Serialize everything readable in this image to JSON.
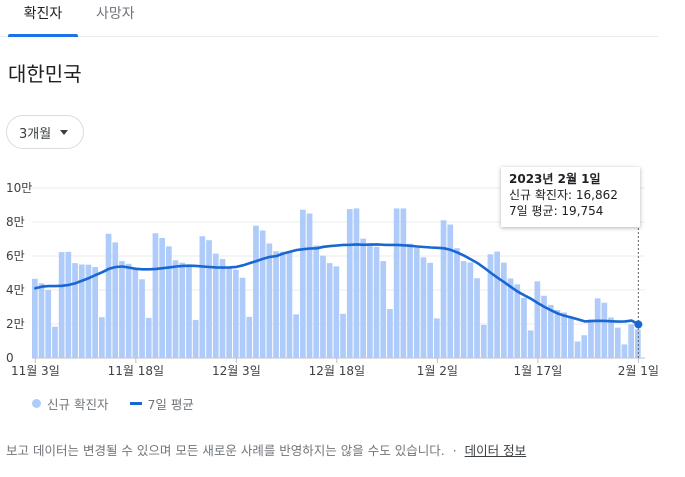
{
  "tabs": [
    {
      "label": "확진자",
      "active": true
    },
    {
      "label": "사망자",
      "active": false
    }
  ],
  "region_title": "대한민국",
  "period_selector": {
    "label": "3개월"
  },
  "tooltip": {
    "date": "2023년 2월 1일",
    "cases_line": "신규 확진자: 16,862",
    "avg_line": "7일 평균: 19,754"
  },
  "legend": {
    "bars": "신규 확진자",
    "line": "7일 평균"
  },
  "footnote": {
    "text": "보고 데이터는 변경될 수 있으며 모든 새로운 사례를 반영하지는 않을 수도 있습니다.",
    "separator": "·",
    "link": "데이터 정보"
  },
  "colors": {
    "bar": "#aecbfa",
    "line": "#1967d2",
    "accent": "#1a73e8"
  },
  "chart_data": {
    "type": "bar",
    "y_ticks": [
      {
        "value": 0,
        "label": "0"
      },
      {
        "value": 20000,
        "label": "2만"
      },
      {
        "value": 40000,
        "label": "4만"
      },
      {
        "value": 60000,
        "label": "6만"
      },
      {
        "value": 80000,
        "label": "8만"
      },
      {
        "value": 100000,
        "label": "10만"
      }
    ],
    "ylim": [
      0,
      100000
    ],
    "x_ticks": [
      {
        "index": 0,
        "label": "11월 3일"
      },
      {
        "index": 15,
        "label": "11월 18일"
      },
      {
        "index": 30,
        "label": "12월 3일"
      },
      {
        "index": 45,
        "label": "12월 18일"
      },
      {
        "index": 60,
        "label": "1월 2일"
      },
      {
        "index": 75,
        "label": "1월 17일"
      },
      {
        "index": 90,
        "label": "2월 1일"
      }
    ],
    "grid": true,
    "series": [
      {
        "name": "신규 확진자",
        "type": "bar",
        "values": [
          46600,
          43900,
          40000,
          18400,
          62300,
          62400,
          55800,
          55000,
          54900,
          53500,
          24000,
          73100,
          68000,
          57000,
          55400,
          53000,
          46300,
          23600,
          73400,
          70600,
          65700,
          57500,
          56100,
          53500,
          22400,
          71600,
          69300,
          61400,
          58200,
          52800,
          52000,
          47200,
          24200,
          77800,
          75000,
          67400,
          62800,
          62500,
          62500,
          25700,
          87200,
          85000,
          66200,
          60200,
          55800,
          53900,
          26000,
          87600,
          88000,
          70200,
          67500,
          65400,
          57000,
          28800,
          88000,
          88000,
          67200,
          64800,
          59200,
          56000,
          23300,
          81000,
          78500,
          64600,
          57000,
          56200,
          46900,
          19500,
          61000,
          62600,
          56100,
          46800,
          43300,
          35400,
          16200,
          45100,
          36600,
          31200,
          28200,
          26800,
          24300,
          9700,
          13400,
          22700,
          35100,
          32500,
          23800,
          17900,
          8000,
          19700,
          16862
        ]
      },
      {
        "name": "7일 평균",
        "type": "line",
        "values": [
          41000,
          42000,
          42300,
          42300,
          42500,
          43000,
          44000,
          45500,
          47000,
          48800,
          50500,
          52500,
          53500,
          53800,
          53200,
          52500,
          52200,
          52200,
          52400,
          52800,
          53300,
          53800,
          54200,
          54300,
          54200,
          53800,
          53500,
          53300,
          53200,
          53300,
          53600,
          54500,
          55800,
          57000,
          58400,
          59500,
          60000,
          61500,
          62500,
          63500,
          64000,
          64400,
          64500,
          65400,
          65800,
          66200,
          66500,
          66600,
          66800,
          66600,
          66700,
          66800,
          66600,
          66500,
          66500,
          66300,
          66000,
          65600,
          65300,
          65000,
          64800,
          64500,
          63600,
          62000,
          60200,
          58000,
          55800,
          53000,
          50000,
          47200,
          44500,
          41700,
          39000,
          36800,
          34800,
          32300,
          30000,
          28000,
          26100,
          24800,
          23800,
          22700,
          21500,
          21700,
          21900,
          21800,
          21600,
          21400,
          21500,
          22000,
          19754
        ]
      }
    ]
  }
}
